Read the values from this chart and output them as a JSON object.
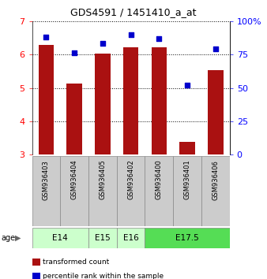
{
  "title": "GDS4591 / 1451410_a_at",
  "samples": [
    "GSM936403",
    "GSM936404",
    "GSM936405",
    "GSM936402",
    "GSM936400",
    "GSM936401",
    "GSM936406"
  ],
  "transformed_count": [
    6.28,
    5.12,
    6.03,
    6.22,
    6.22,
    3.38,
    5.52
  ],
  "percentile_rank": [
    88,
    76,
    83,
    90,
    87,
    52,
    79
  ],
  "age_groups": [
    {
      "label": "E14",
      "samples": [
        "GSM936403",
        "GSM936404"
      ],
      "color": "#ccffcc"
    },
    {
      "label": "E15",
      "samples": [
        "GSM936405"
      ],
      "color": "#ccffcc"
    },
    {
      "label": "E16",
      "samples": [
        "GSM936402"
      ],
      "color": "#ccffcc"
    },
    {
      "label": "E17.5",
      "samples": [
        "GSM936400",
        "GSM936401",
        "GSM936406"
      ],
      "color": "#55dd55"
    }
  ],
  "ylim_left": [
    3,
    7
  ],
  "ylim_right": [
    0,
    100
  ],
  "yticks_left": [
    3,
    4,
    5,
    6,
    7
  ],
  "yticks_right": [
    0,
    25,
    50,
    75,
    100
  ],
  "ytick_right_labels": [
    "0",
    "25",
    "50",
    "75",
    "100%"
  ],
  "bar_color": "#aa1111",
  "dot_color": "#0000cc",
  "bar_width": 0.55,
  "sample_cell_color": "#cccccc",
  "e14_e16_color": "#ccffcc",
  "e175_color": "#55dd55"
}
